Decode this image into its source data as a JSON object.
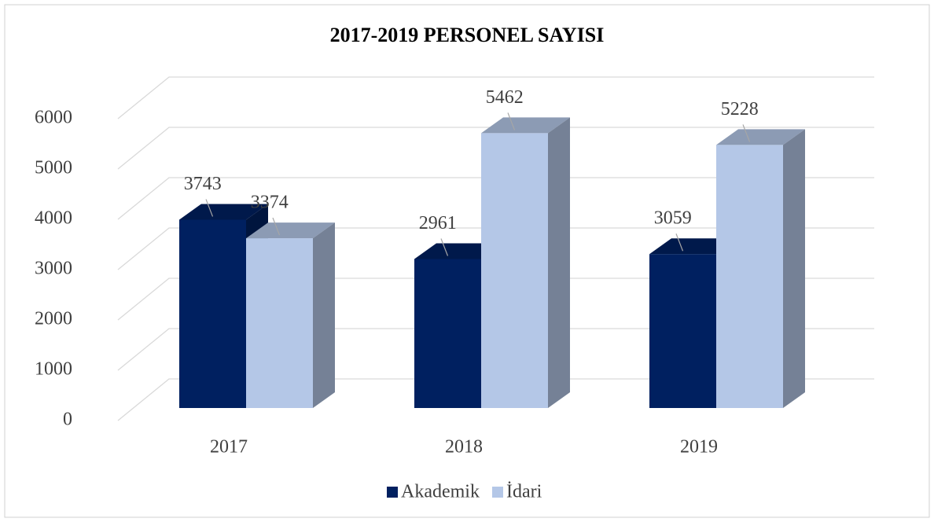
{
  "chart_data": {
    "type": "bar3d",
    "title": "2017-2019 PERSONEL SAYISI",
    "categories": [
      "2017",
      "2018",
      "2019"
    ],
    "series": [
      {
        "name": "Akademik",
        "color": "#002060",
        "values": [
          3743,
          2961,
          3059
        ]
      },
      {
        "name": "İdari",
        "color": "#b4c7e7",
        "values": [
          3374,
          5462,
          5228
        ]
      }
    ],
    "ylim": [
      0,
      6000
    ],
    "yticks": [
      0,
      1000,
      2000,
      3000,
      4000,
      5000,
      6000
    ],
    "grid": true,
    "legend": "bottom"
  }
}
